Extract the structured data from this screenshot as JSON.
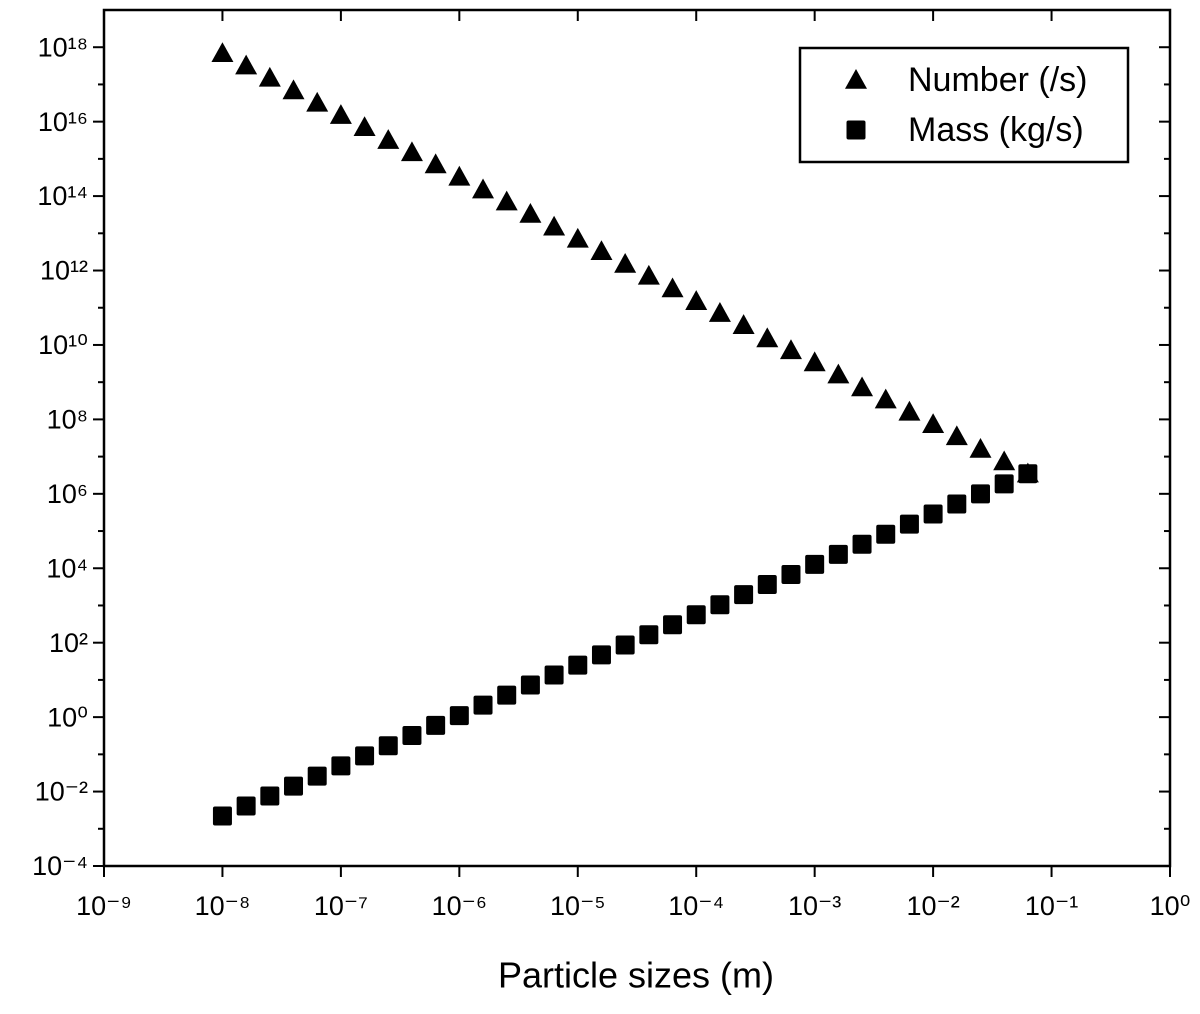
{
  "chart_data": {
    "type": "scatter",
    "x_label": "Particle sizes (m)",
    "xscale": "log",
    "yscale": "log",
    "legend": "top-right",
    "xlim": [
      1e-09,
      1
    ],
    "ylim": [
      0.0001,
      1e+19
    ],
    "xticks": [
      {
        "value": 1e-09,
        "label": "10⁻⁹"
      },
      {
        "value": 1e-08,
        "label": "10⁻⁸"
      },
      {
        "value": 1e-07,
        "label": "10⁻⁷"
      },
      {
        "value": 1e-06,
        "label": "10⁻⁶"
      },
      {
        "value": 1e-05,
        "label": "10⁻⁵"
      },
      {
        "value": 0.0001,
        "label": "10⁻⁴"
      },
      {
        "value": 0.001,
        "label": "10⁻³"
      },
      {
        "value": 0.01,
        "label": "10⁻²"
      },
      {
        "value": 0.1,
        "label": "10⁻¹"
      },
      {
        "value": 1,
        "label": "10⁰"
      }
    ],
    "yticks": [
      {
        "value": 0.0001,
        "label": "10⁻⁴"
      },
      {
        "value": 0.01,
        "label": "10⁻²"
      },
      {
        "value": 1,
        "label": "10⁰"
      },
      {
        "value": 100.0,
        "label": "10²"
      },
      {
        "value": 10000.0,
        "label": "10⁴"
      },
      {
        "value": 1000000.0,
        "label": "10⁶"
      },
      {
        "value": 100000000.0,
        "label": "10⁸"
      },
      {
        "value": 10000000000.0,
        "label": "10¹⁰"
      },
      {
        "value": 1000000000000.0,
        "label": "10¹²"
      },
      {
        "value": 100000000000000.0,
        "label": "10¹⁴"
      },
      {
        "value": 1e+16,
        "label": "10¹⁶"
      },
      {
        "value": 1e+18,
        "label": "10¹⁸"
      }
    ],
    "yminorticks": [
      0.001,
      0.1,
      10.0,
      1000.0,
      100000.0,
      10000000.0,
      1000000000.0,
      100000000000.0,
      10000000000000.0,
      1000000000000000.0,
      1e+17
    ],
    "x": [
      1e-08,
      1.585e-08,
      2.512e-08,
      3.981e-08,
      6.31e-08,
      1e-07,
      1.585e-07,
      2.512e-07,
      3.981e-07,
      6.31e-07,
      1e-06,
      1.585e-06,
      2.512e-06,
      3.981e-06,
      6.31e-06,
      1e-05,
      1.585e-05,
      2.512e-05,
      3.981e-05,
      6.31e-05,
      0.0001,
      0.0001585,
      0.0002512,
      0.0003981,
      0.000631,
      0.001,
      0.001585,
      0.002512,
      0.003981,
      0.00631,
      0.01,
      0.01585,
      0.02512,
      0.03981,
      0.0631
    ],
    "series": [
      {
        "name": "Number (/s)",
        "color": "#000000",
        "marker": "triangle",
        "values": [
          6.9e+17,
          3.2e+17,
          1.5e+17,
          6.9e+16,
          3.2e+16,
          1.5e+16,
          7100000000000000.0,
          3200000000000000.0,
          1500000000000000.0,
          710000000000000.0,
          330000000000000.0,
          150000000000000.0,
          71000000000000.0,
          33000000000000.0,
          15000000000000.0,
          7100000000000.0,
          3300000000000.0,
          1500000000000.0,
          720000000000.0,
          330000000000.0,
          150000000000.0,
          72000000000.0,
          34000000000.0,
          15000000000.0,
          7200000000.0,
          3400000000.0,
          1600000000.0,
          720000000.0,
          340000000.0,
          160000000.0,
          74000000.0,
          35000000.0,
          16000000.0,
          7400000.0,
          3500000.0
        ]
      },
      {
        "name": "Mass (kg/s)",
        "color": "#000000",
        "marker": "square",
        "values": [
          0.0022,
          0.0041,
          0.0076,
          0.014,
          0.026,
          0.049,
          0.091,
          0.17,
          0.32,
          0.6,
          1.1,
          2.1,
          3.9,
          7.3,
          13.6,
          25,
          47,
          87,
          163,
          303,
          565,
          1050,
          1960,
          3650,
          6800,
          12700,
          23700,
          44100,
          82200,
          153000,
          286000,
          533000,
          994000,
          1850000,
          3460000
        ]
      }
    ]
  }
}
